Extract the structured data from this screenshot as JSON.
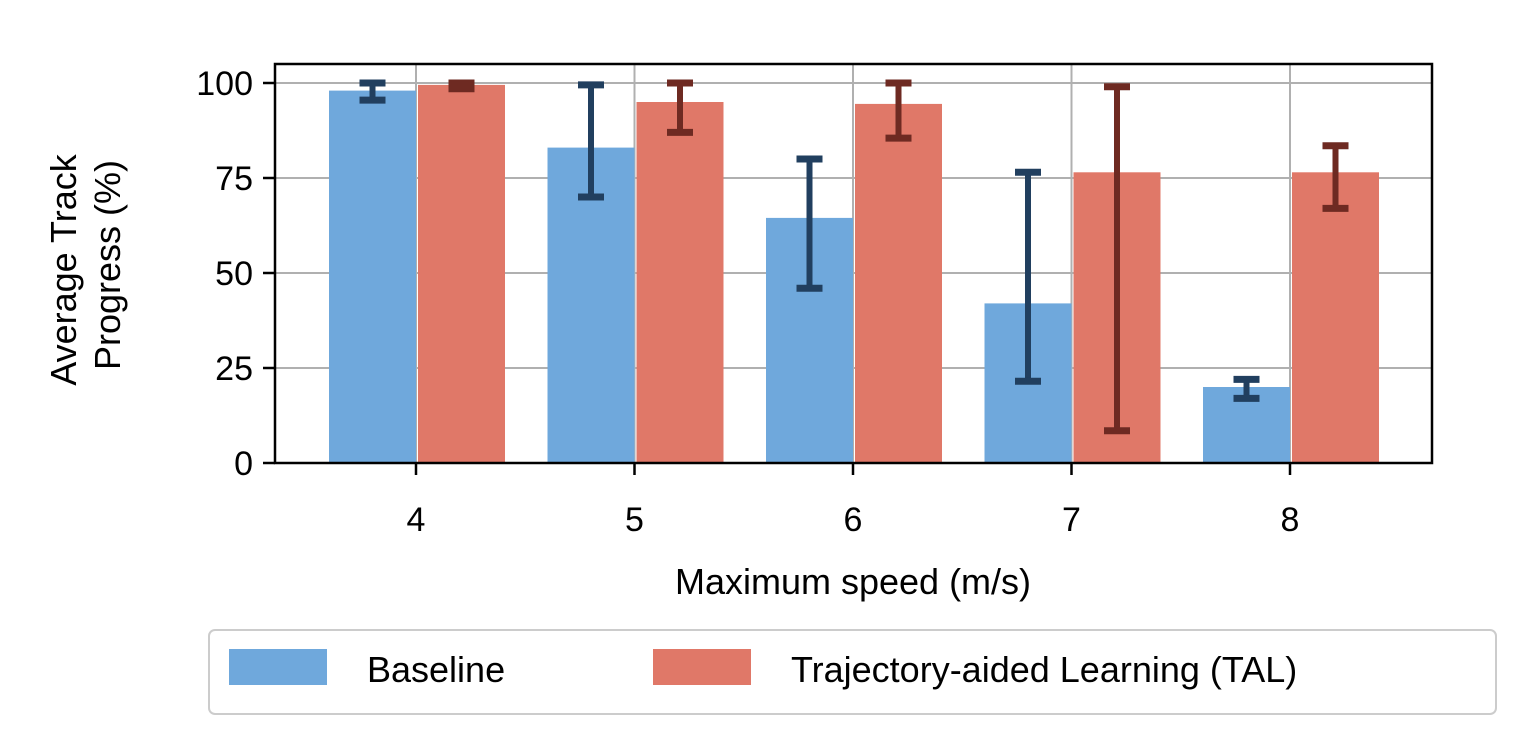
{
  "chart_data": {
    "type": "bar",
    "categories": [
      "4",
      "5",
      "6",
      "7",
      "8"
    ],
    "series": [
      {
        "name": "Baseline",
        "color": "#6fa8dc",
        "error_color": "#213f5f",
        "values": [
          98,
          83,
          64.5,
          42,
          20
        ],
        "error_low": [
          95.5,
          70,
          46,
          21.5,
          17
        ],
        "error_high": [
          100,
          99.5,
          80,
          76.5,
          22
        ]
      },
      {
        "name": "Trajectory-aided Learning (TAL)",
        "color": "#e07868",
        "error_color": "#6e2a22",
        "values": [
          99.5,
          95,
          94.5,
          76.5,
          76.5
        ],
        "error_low": [
          98.5,
          87,
          85.5,
          8.5,
          67
        ],
        "error_high": [
          100,
          100,
          100,
          99,
          83.5
        ]
      }
    ],
    "xlabel": "Maximum speed (m/s)",
    "ylabel_lines": [
      "Average Track",
      "Progress (%)"
    ],
    "ylim": [
      0,
      105
    ],
    "yticks": [
      0,
      25,
      50,
      75,
      100
    ],
    "grid": true,
    "legend": "below"
  }
}
